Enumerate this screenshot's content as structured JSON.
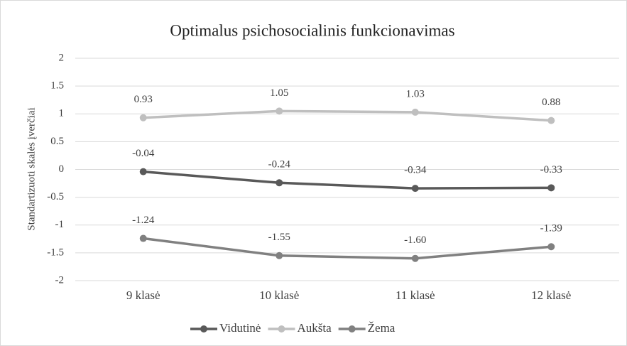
{
  "chart_data": {
    "type": "line",
    "title": "Optimalus psichosocialinis funkcionavimas",
    "y_label": "Standartizuoti skalės įverčiai",
    "categories": [
      "9 klasė",
      "10 klasė",
      "11 klasė",
      "12 klasė"
    ],
    "series": [
      {
        "name": "Vidutinė",
        "color": "#595959",
        "values": [
          -0.04,
          -0.24,
          -0.34,
          -0.33
        ],
        "value_labels": [
          "-0.04",
          "-0.24",
          "-0.34",
          "-0.33"
        ]
      },
      {
        "name": "Aukšta",
        "color": "#bfbfbf",
        "values": [
          0.93,
          1.05,
          1.03,
          0.88
        ],
        "value_labels": [
          "0.93",
          "1.05",
          "1.03",
          "0.88"
        ]
      },
      {
        "name": "Žema",
        "color": "#808080",
        "values": [
          -1.24,
          -1.55,
          -1.6,
          -1.39
        ],
        "value_labels": [
          "-1.24",
          "-1.55",
          "-1.60",
          "-1.39"
        ]
      }
    ],
    "ylim": [
      -2,
      2
    ],
    "yticks": [
      -2,
      -1.5,
      -1,
      -0.5,
      0,
      0.5,
      1,
      1.5,
      2
    ],
    "grid": true,
    "legend": "bottom"
  }
}
